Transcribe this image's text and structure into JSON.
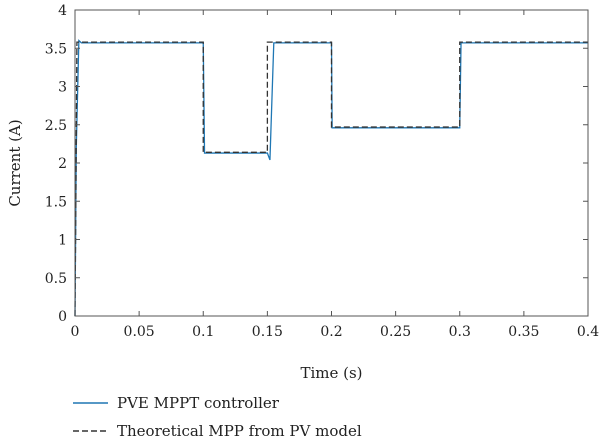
{
  "chart_data": {
    "type": "line",
    "xlabel": "Time (s)",
    "ylabel": "Current (A)",
    "xlim": [
      0,
      0.4
    ],
    "ylim": [
      0,
      4
    ],
    "x_ticks": [
      "0",
      "0.05",
      "0.1",
      "0.15",
      "0.2",
      "0.25",
      "0.3",
      "0.35",
      "0.4"
    ],
    "y_ticks": [
      "0",
      "0.5",
      "1",
      "1.5",
      "2",
      "2.5",
      "3",
      "3.5",
      "4"
    ],
    "grid": false,
    "legend_position": "bottom-left, below plot",
    "series": [
      {
        "name": "PVE MPPT controller",
        "style": "solid",
        "color": "#1f77b4",
        "x": [
          0,
          0.001,
          0.003,
          0.005,
          0.1,
          0.101,
          0.15,
          0.152,
          0.155,
          0.2,
          0.2005,
          0.3,
          0.301,
          0.4
        ],
        "y": [
          0,
          2.2,
          3.6,
          3.57,
          3.57,
          2.13,
          2.13,
          2.04,
          3.57,
          3.57,
          2.46,
          2.46,
          3.57,
          3.57
        ]
      },
      {
        "name": "Theoretical MPP from PV model",
        "style": "dashed",
        "color": "#333333",
        "x": [
          0,
          0.0015,
          0.1,
          0.1,
          0.15,
          0.15,
          0.2,
          0.2,
          0.3,
          0.3,
          0.4
        ],
        "y": [
          0,
          3.58,
          3.58,
          2.14,
          2.14,
          3.58,
          3.58,
          2.47,
          2.47,
          3.58,
          3.58
        ]
      }
    ]
  }
}
